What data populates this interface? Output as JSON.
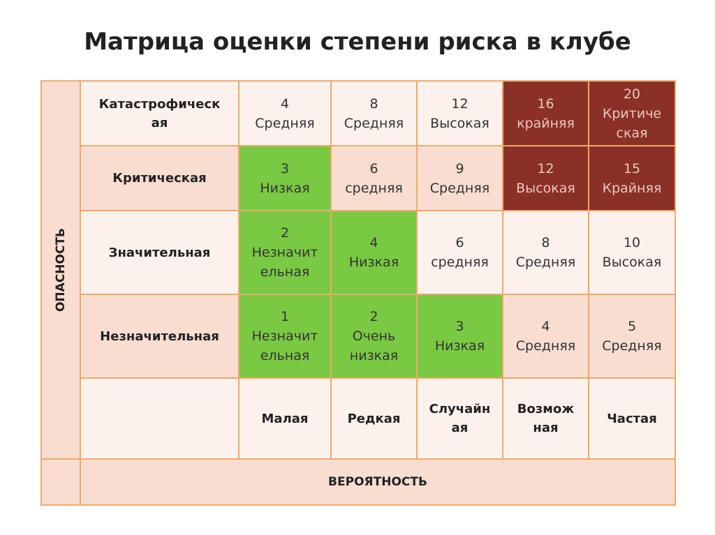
{
  "page": {
    "title": "Матрица оценки степени риска в клубе"
  },
  "matrix": {
    "axis_vertical": "ОПАСНОСТЬ",
    "axis_horizontal": "ВЕРОЯТНОСТЬ",
    "colors": {
      "light": "#fdf1ec",
      "pink": "#f8ddd0",
      "green": "#7ac943",
      "dark_red": "#8b3026",
      "border": "#f0a86a"
    },
    "columns": [
      {
        "label": "Малая"
      },
      {
        "label": "Редкая"
      },
      {
        "label": "Случайн\nая"
      },
      {
        "label": "Возмож\nная"
      },
      {
        "label": "Частая"
      }
    ],
    "rows": [
      {
        "label": "Катастрофическ\nая",
        "band": "light",
        "cells": [
          {
            "num": "4",
            "level": "Средняя",
            "color": "light"
          },
          {
            "num": "8",
            "level": "Средняя",
            "color": "light"
          },
          {
            "num": "12",
            "level": "Высокая",
            "color": "light"
          },
          {
            "num": "16",
            "level": "крайняя",
            "color": "dark_red"
          },
          {
            "num": "20",
            "level": "Критиче\nская",
            "color": "dark_red"
          }
        ]
      },
      {
        "label": "Критическая",
        "band": "pink",
        "cells": [
          {
            "num": "3",
            "level": "Низкая",
            "color": "green"
          },
          {
            "num": "6",
            "level": "средняя",
            "color": "pink"
          },
          {
            "num": "9",
            "level": "Средняя",
            "color": "pink"
          },
          {
            "num": "12",
            "level": "Высокая",
            "color": "dark_red"
          },
          {
            "num": "15",
            "level": "Крайняя",
            "color": "dark_red"
          }
        ]
      },
      {
        "label": "Значительная",
        "band": "light",
        "cells": [
          {
            "num": "2",
            "level": "Незначит\nельная",
            "color": "green"
          },
          {
            "num": "4",
            "level": "Низкая",
            "color": "green"
          },
          {
            "num": "6",
            "level": "средняя",
            "color": "light"
          },
          {
            "num": "8",
            "level": "Средняя",
            "color": "light"
          },
          {
            "num": "10",
            "level": "Высокая",
            "color": "light"
          }
        ]
      },
      {
        "label": "Незначительная",
        "band": "pink",
        "cells": [
          {
            "num": "1",
            "level": "Незначит\nельная",
            "color": "green"
          },
          {
            "num": "2",
            "level": "Очень\nнизкая",
            "color": "green"
          },
          {
            "num": "3",
            "level": "Низкая",
            "color": "green"
          },
          {
            "num": "4",
            "level": "Средняя",
            "color": "pink"
          },
          {
            "num": "5",
            "level": "Средняя",
            "color": "pink"
          }
        ]
      }
    ]
  }
}
